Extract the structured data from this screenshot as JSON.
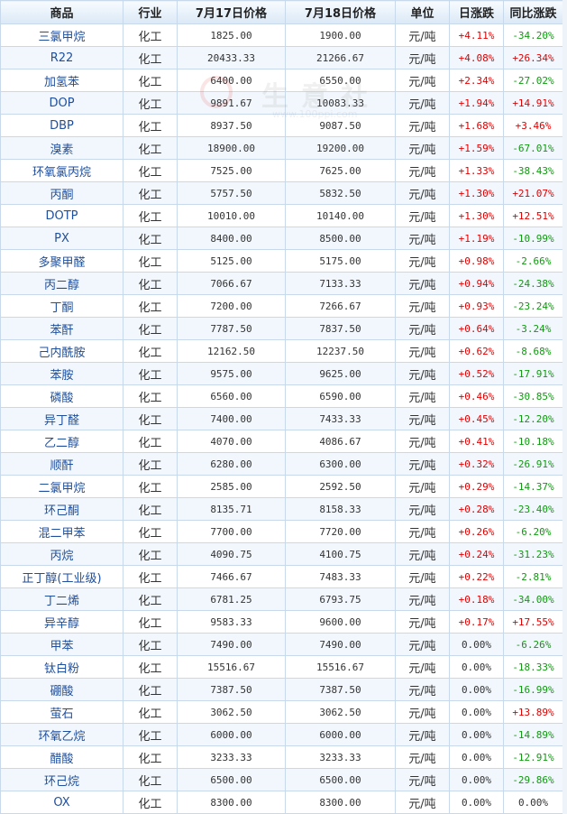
{
  "columns": {
    "product": "商品",
    "industry": "行业",
    "price_jul17": "7月17日价格",
    "price_jul18": "7月18日价格",
    "unit": "单位",
    "daily_change": "日涨跌",
    "yoy_change": "同比涨跌"
  },
  "colors": {
    "up": "#e00000",
    "down": "#119911",
    "link": "#1f4f9c",
    "border": "#c9d9ec"
  },
  "rows": [
    {
      "name": "三氯甲烷",
      "industry": "化工",
      "p17": "1825.00",
      "p18": "1900.00",
      "unit": "元/吨",
      "day": "+4.11%",
      "yoy": "-34.20%"
    },
    {
      "name": "R22",
      "industry": "化工",
      "p17": "20433.33",
      "p18": "21266.67",
      "unit": "元/吨",
      "day": "+4.08%",
      "yoy": "+26.34%"
    },
    {
      "name": "加氢苯",
      "industry": "化工",
      "p17": "6400.00",
      "p18": "6550.00",
      "unit": "元/吨",
      "day": "+2.34%",
      "yoy": "-27.02%"
    },
    {
      "name": "DOP",
      "industry": "化工",
      "p17": "9891.67",
      "p18": "10083.33",
      "unit": "元/吨",
      "day": "+1.94%",
      "yoy": "+14.91%"
    },
    {
      "name": "DBP",
      "industry": "化工",
      "p17": "8937.50",
      "p18": "9087.50",
      "unit": "元/吨",
      "day": "+1.68%",
      "yoy": "+3.46%"
    },
    {
      "name": "溴素",
      "industry": "化工",
      "p17": "18900.00",
      "p18": "19200.00",
      "unit": "元/吨",
      "day": "+1.59%",
      "yoy": "-67.01%"
    },
    {
      "name": "环氧氯丙烷",
      "industry": "化工",
      "p17": "7525.00",
      "p18": "7625.00",
      "unit": "元/吨",
      "day": "+1.33%",
      "yoy": "-38.43%"
    },
    {
      "name": "丙酮",
      "industry": "化工",
      "p17": "5757.50",
      "p18": "5832.50",
      "unit": "元/吨",
      "day": "+1.30%",
      "yoy": "+21.07%"
    },
    {
      "name": "DOTP",
      "industry": "化工",
      "p17": "10010.00",
      "p18": "10140.00",
      "unit": "元/吨",
      "day": "+1.30%",
      "yoy": "+12.51%"
    },
    {
      "name": "PX",
      "industry": "化工",
      "p17": "8400.00",
      "p18": "8500.00",
      "unit": "元/吨",
      "day": "+1.19%",
      "yoy": "-10.99%"
    },
    {
      "name": "多聚甲醛",
      "industry": "化工",
      "p17": "5125.00",
      "p18": "5175.00",
      "unit": "元/吨",
      "day": "+0.98%",
      "yoy": "-2.66%"
    },
    {
      "name": "丙二醇",
      "industry": "化工",
      "p17": "7066.67",
      "p18": "7133.33",
      "unit": "元/吨",
      "day": "+0.94%",
      "yoy": "-24.38%"
    },
    {
      "name": "丁酮",
      "industry": "化工",
      "p17": "7200.00",
      "p18": "7266.67",
      "unit": "元/吨",
      "day": "+0.93%",
      "yoy": "-23.24%"
    },
    {
      "name": "苯酐",
      "industry": "化工",
      "p17": "7787.50",
      "p18": "7837.50",
      "unit": "元/吨",
      "day": "+0.64%",
      "yoy": "-3.24%"
    },
    {
      "name": "己内酰胺",
      "industry": "化工",
      "p17": "12162.50",
      "p18": "12237.50",
      "unit": "元/吨",
      "day": "+0.62%",
      "yoy": "-8.68%"
    },
    {
      "name": "苯胺",
      "industry": "化工",
      "p17": "9575.00",
      "p18": "9625.00",
      "unit": "元/吨",
      "day": "+0.52%",
      "yoy": "-17.91%"
    },
    {
      "name": "磷酸",
      "industry": "化工",
      "p17": "6560.00",
      "p18": "6590.00",
      "unit": "元/吨",
      "day": "+0.46%",
      "yoy": "-30.85%"
    },
    {
      "name": "异丁醛",
      "industry": "化工",
      "p17": "7400.00",
      "p18": "7433.33",
      "unit": "元/吨",
      "day": "+0.45%",
      "yoy": "-12.20%"
    },
    {
      "name": "乙二醇",
      "industry": "化工",
      "p17": "4070.00",
      "p18": "4086.67",
      "unit": "元/吨",
      "day": "+0.41%",
      "yoy": "-10.18%"
    },
    {
      "name": "顺酐",
      "industry": "化工",
      "p17": "6280.00",
      "p18": "6300.00",
      "unit": "元/吨",
      "day": "+0.32%",
      "yoy": "-26.91%"
    },
    {
      "name": "二氯甲烷",
      "industry": "化工",
      "p17": "2585.00",
      "p18": "2592.50",
      "unit": "元/吨",
      "day": "+0.29%",
      "yoy": "-14.37%"
    },
    {
      "name": "环己酮",
      "industry": "化工",
      "p17": "8135.71",
      "p18": "8158.33",
      "unit": "元/吨",
      "day": "+0.28%",
      "yoy": "-23.40%"
    },
    {
      "name": "混二甲苯",
      "industry": "化工",
      "p17": "7700.00",
      "p18": "7720.00",
      "unit": "元/吨",
      "day": "+0.26%",
      "yoy": "-6.20%"
    },
    {
      "name": "丙烷",
      "industry": "化工",
      "p17": "4090.75",
      "p18": "4100.75",
      "unit": "元/吨",
      "day": "+0.24%",
      "yoy": "-31.23%"
    },
    {
      "name": "正丁醇(工业级)",
      "industry": "化工",
      "p17": "7466.67",
      "p18": "7483.33",
      "unit": "元/吨",
      "day": "+0.22%",
      "yoy": "-2.81%"
    },
    {
      "name": "丁二烯",
      "industry": "化工",
      "p17": "6781.25",
      "p18": "6793.75",
      "unit": "元/吨",
      "day": "+0.18%",
      "yoy": "-34.00%"
    },
    {
      "name": "异辛醇",
      "industry": "化工",
      "p17": "9583.33",
      "p18": "9600.00",
      "unit": "元/吨",
      "day": "+0.17%",
      "yoy": "+17.55%"
    },
    {
      "name": "甲苯",
      "industry": "化工",
      "p17": "7490.00",
      "p18": "7490.00",
      "unit": "元/吨",
      "day": "0.00%",
      "yoy": "-6.26%"
    },
    {
      "name": "钛白粉",
      "industry": "化工",
      "p17": "15516.67",
      "p18": "15516.67",
      "unit": "元/吨",
      "day": "0.00%",
      "yoy": "-18.33%"
    },
    {
      "name": "硼酸",
      "industry": "化工",
      "p17": "7387.50",
      "p18": "7387.50",
      "unit": "元/吨",
      "day": "0.00%",
      "yoy": "-16.99%"
    },
    {
      "name": "萤石",
      "industry": "化工",
      "p17": "3062.50",
      "p18": "3062.50",
      "unit": "元/吨",
      "day": "0.00%",
      "yoy": "+13.89%"
    },
    {
      "name": "环氧乙烷",
      "industry": "化工",
      "p17": "6000.00",
      "p18": "6000.00",
      "unit": "元/吨",
      "day": "0.00%",
      "yoy": "-14.89%"
    },
    {
      "name": "醋酸",
      "industry": "化工",
      "p17": "3233.33",
      "p18": "3233.33",
      "unit": "元/吨",
      "day": "0.00%",
      "yoy": "-12.91%"
    },
    {
      "name": "环己烷",
      "industry": "化工",
      "p17": "6500.00",
      "p18": "6500.00",
      "unit": "元/吨",
      "day": "0.00%",
      "yoy": "-29.86%"
    },
    {
      "name": "OX",
      "industry": "化工",
      "p17": "8300.00",
      "p18": "8300.00",
      "unit": "元/吨",
      "day": "0.00%",
      "yoy": "0.00%"
    }
  ],
  "watermark": {
    "text": "生意社",
    "url": "www.100ppi.com"
  }
}
